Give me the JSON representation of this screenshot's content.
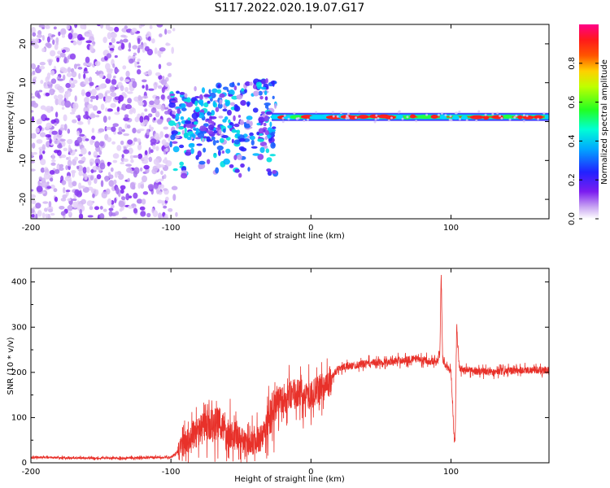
{
  "title": "S117.2022.020.19.07.G17",
  "charts": [
    {
      "type": "heatmap",
      "xlabel": "Height of straight line (km)",
      "ylabel": "Frequency (Hz)",
      "xlim": [
        -200,
        170
      ],
      "ylim": [
        -25,
        25
      ],
      "x_ticks": [
        "-200",
        "-100",
        "0",
        "100"
      ],
      "y_ticks": [
        "-20",
        "-10",
        "0",
        "10",
        "20"
      ],
      "colorbar": {
        "label": "Normalized spectral amplitude",
        "range": [
          0,
          1
        ],
        "ticks": [
          "0.0",
          "0.2",
          "0.4",
          "0.6",
          "0.8"
        ],
        "colormap": "rainbow-white-violet-blue-cyan-green-yellow-red-magenta"
      },
      "features": [
        {
          "region": "noise",
          "x": [
            -200,
            -100
          ],
          "frequency_hz": [
            -25,
            25
          ],
          "amplitude": "0.0-0.2"
        },
        {
          "region": "scattered",
          "x": [
            -100,
            -25
          ],
          "frequency_hz": [
            -15,
            10
          ],
          "amplitude": "0.1-0.4"
        },
        {
          "region": "carrier",
          "x": [
            -25,
            170
          ],
          "frequency_hz": [
            0,
            2
          ],
          "amplitude": "0.6-1.0"
        }
      ]
    },
    {
      "type": "line",
      "xlabel": "Height of straight line (km)",
      "ylabel": "SNR (10 * v/v)",
      "xlim": [
        -200,
        170
      ],
      "ylim": [
        0,
        430
      ],
      "x_ticks": [
        "-200",
        "-100",
        "0",
        "100"
      ],
      "y_ticks": [
        "0",
        "100",
        "200",
        "300",
        "400"
      ],
      "color": "#e8312a",
      "series": [
        {
          "x": [
            -200,
            -150,
            -100,
            -95,
            -85,
            -75,
            -65,
            -55,
            -45,
            -35,
            -30,
            -25,
            -20,
            -15,
            -10,
            -5,
            0,
            10,
            20,
            30,
            40,
            60,
            75,
            85,
            90,
            92,
            93,
            94,
            96,
            100,
            102,
            103,
            104,
            106,
            110,
            130,
            150,
            170
          ],
          "y": [
            12,
            10,
            12,
            25,
            60,
            80,
            85,
            60,
            40,
            55,
            90,
            140,
            135,
            150,
            155,
            145,
            150,
            170,
            210,
            215,
            220,
            225,
            230,
            225,
            225,
            240,
            420,
            230,
            215,
            205,
            70,
            50,
            300,
            210,
            205,
            200,
            205,
            205
          ]
        }
      ]
    }
  ]
}
